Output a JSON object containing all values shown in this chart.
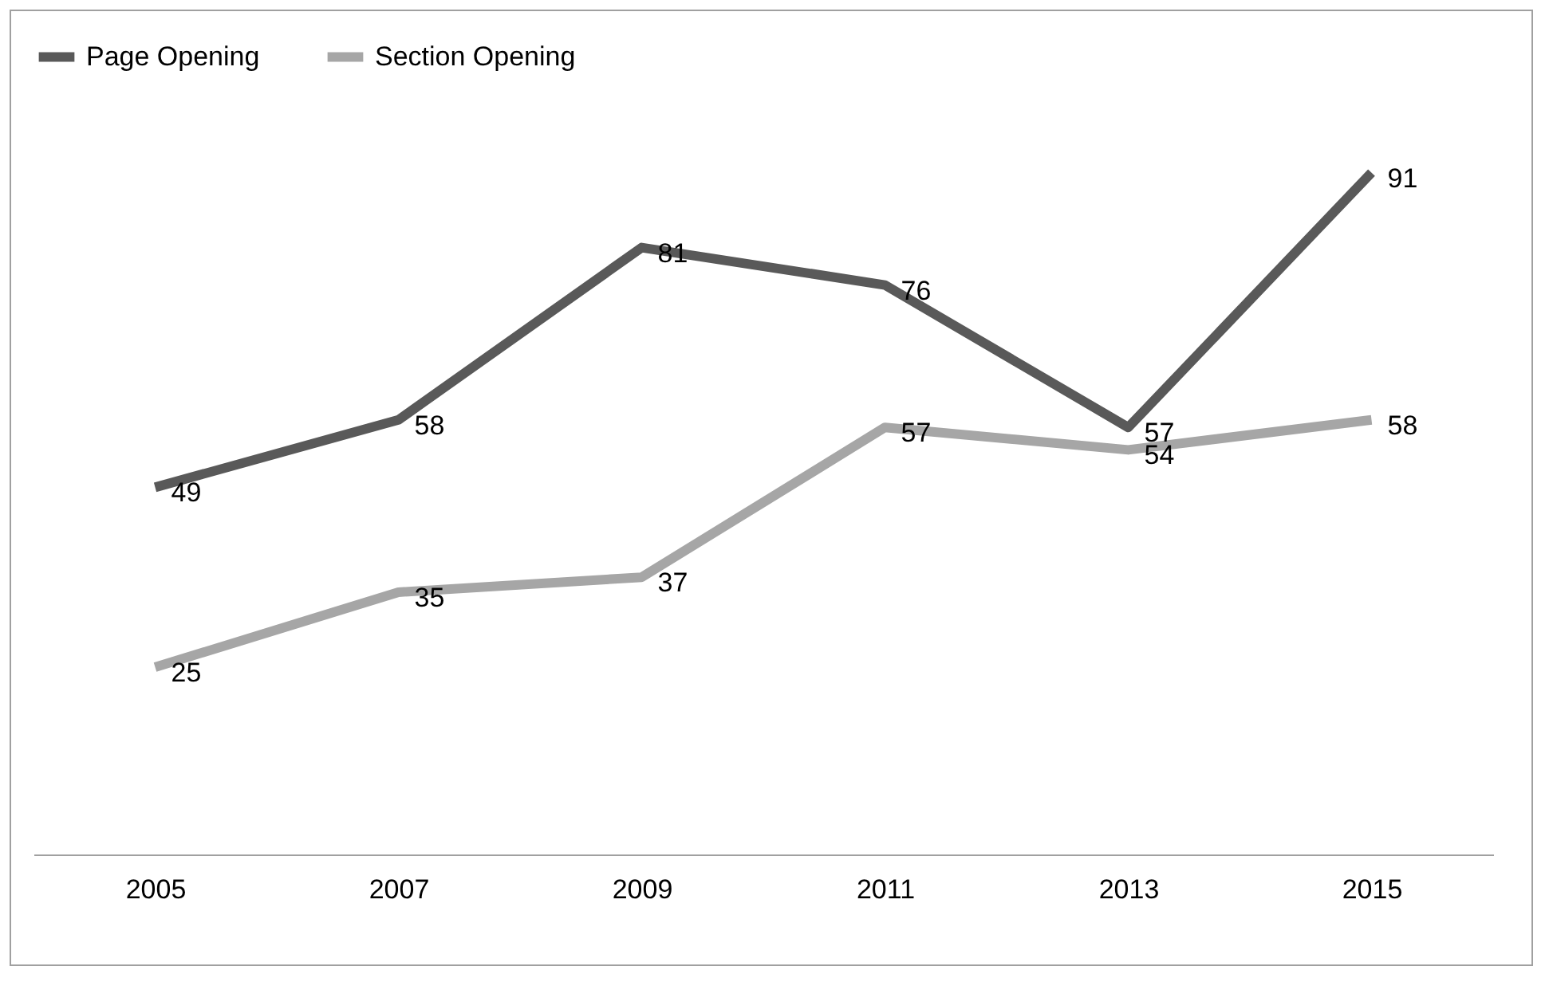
{
  "chart_data": {
    "type": "line",
    "categories": [
      "2005",
      "2007",
      "2009",
      "2011",
      "2013",
      "2015"
    ],
    "series": [
      {
        "name": "Page Opening",
        "color": "#595959",
        "values": [
          49,
          58,
          81,
          76,
          57,
          91
        ]
      },
      {
        "name": "Section Opening",
        "color": "#a6a6a6",
        "values": [
          25,
          35,
          37,
          57,
          54,
          58
        ]
      }
    ],
    "data_labels": true,
    "legend": "top",
    "grid": false,
    "line_style": "solid"
  }
}
